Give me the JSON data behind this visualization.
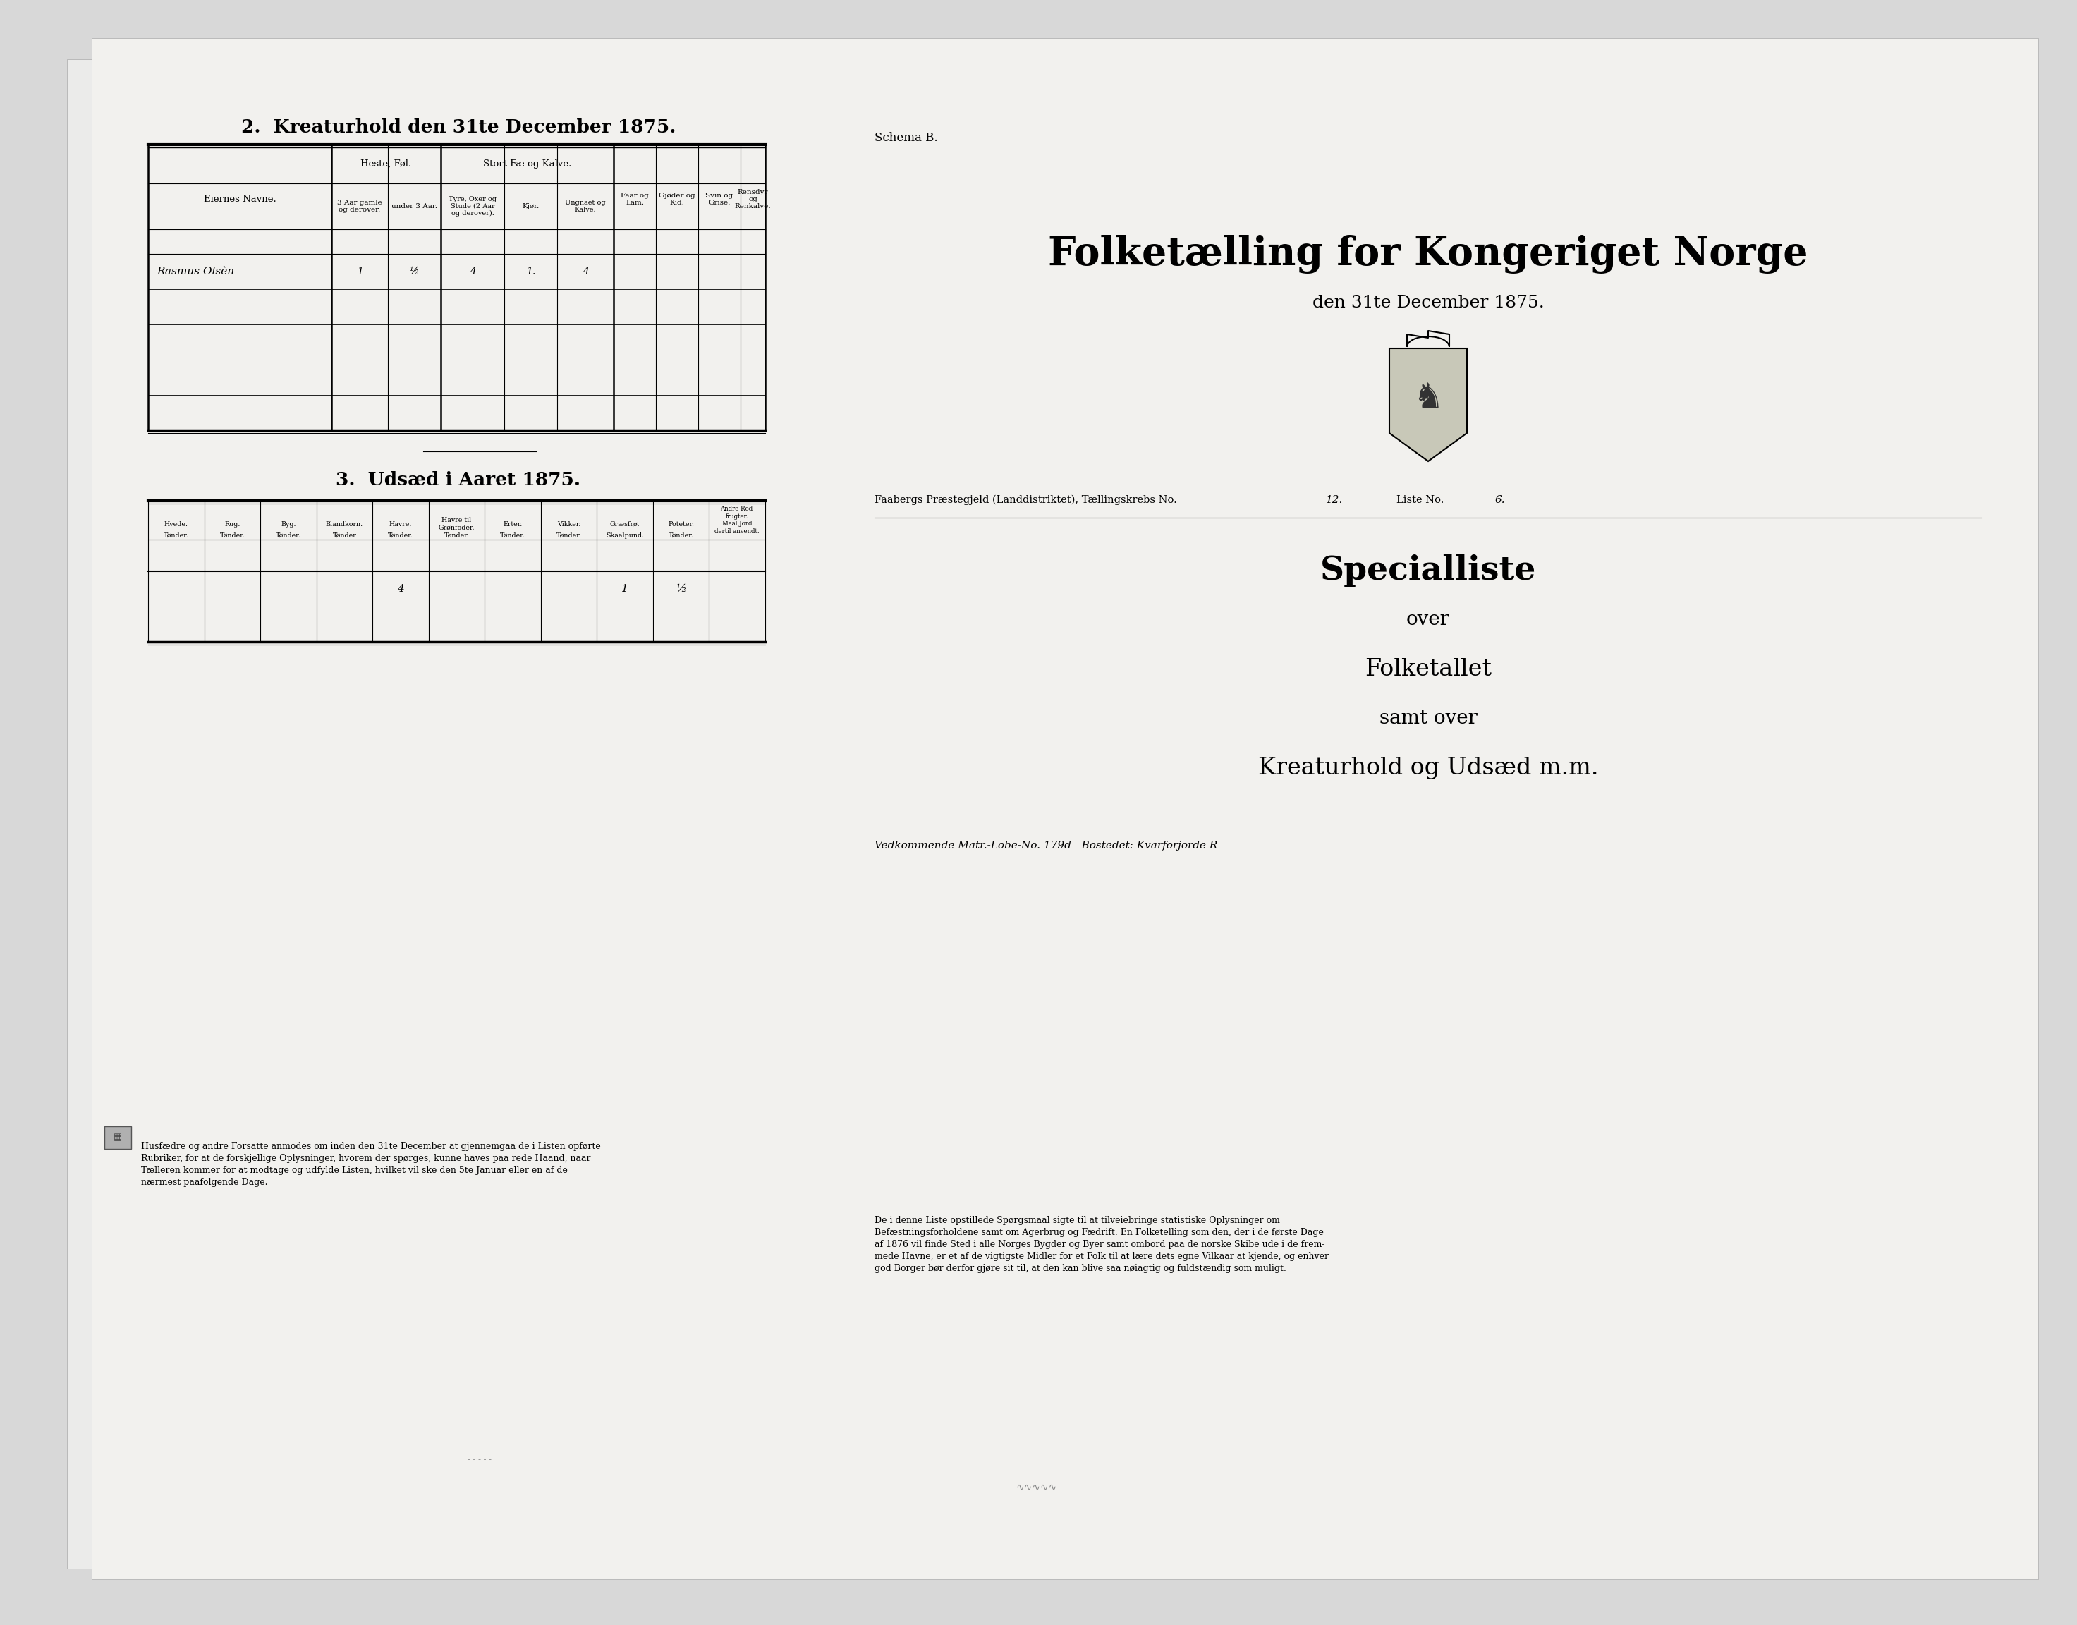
{
  "bg_color": "#d8d8d8",
  "paper_color": "#f2f1ee",
  "title_kreaturhold": "2.  Kreaturhold den 31te December 1875.",
  "title_udsaed": "3.  Udsæd i Aaret 1875.",
  "schema_b": "Schema B.",
  "folketaelling_title": "Folketælling for Kongeriget Norge",
  "folketaelling_date": "den 31te December 1875.",
  "praestegjeld_text": "Faabergs Præstegjeld (Landdistriktet), Tællingskrebs No.",
  "tællingskreds_no": "12.",
  "liste_no_label": "Liste No.",
  "liste_no_val": "6.",
  "specialliste_title": "Specialliste",
  "specialliste_over": "over",
  "folketallet": "Folketallet",
  "samt_over": "samt over",
  "kreaturhold_og": "Kreaturhold og Udsæd m.m.",
  "vedkommende_label": "Vedkommende Matr.-Lobe-No.",
  "matr_no": "179d",
  "bosteded_label": "Bostedet:",
  "bostedet_val": "Kvarforjorde R",
  "bottom_text_left": "Husfædre og andre Forsatte anmodes om inden den 31te December at gjennemgaa de i Listen opførte\nRubriker, for at de forskjellige Oplysninger, hvorem der spørges, kunne haves paa rede Haand, naar\nTælleren kommer for at modtage og udfylde Listen, hvilket vil ske den 5te Januar eller en af de\nnærmest paafolgende Dage.",
  "bottom_text_right": "De i denne Liste opstillede Spørgsmaal sigte til at tilveiebringe statistiske Oplysninger om\nBefæstningsforholdene samt om Agerbrug og Fædrift. En Folketelling som den, der i de første Dage\naf 1876 vil finde Sted i alle Norges Bygder og Byer samt ombord paa de norske Skibe ude i de frem-\nmede Havne, er et af de vigtigste Midler for et Folk til at lære dets egne Vilkaar at kjende, og enhver\ngod Borger bør derfor gjøre sit til, at den kan blive saa nøiagtig og fuldstændig som muligt."
}
